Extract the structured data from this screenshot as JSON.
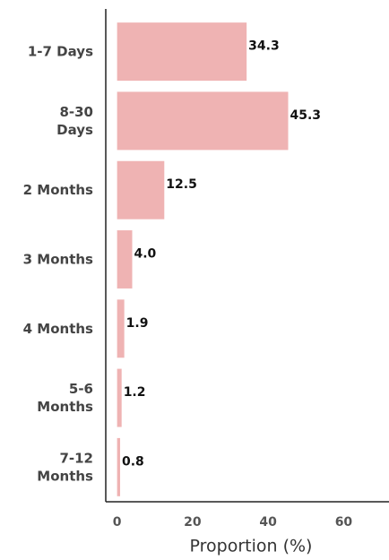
{
  "chart_data": {
    "type": "barh",
    "categories": [
      "1-7 Days",
      "8-30\nDays",
      "2 Months",
      "3 Months",
      "4 Months",
      "5-6\nMonths",
      "7-12\nMonths"
    ],
    "values": [
      34.3,
      45.3,
      12.5,
      4.0,
      1.9,
      1.2,
      0.8
    ],
    "value_labels": [
      "34.3",
      "45.3",
      "12.5",
      "4.0",
      "1.9",
      "1.2",
      "0.8"
    ],
    "color": "#efb3b3",
    "xlabel": "Proportion (%)",
    "xlim": [
      -3,
      72
    ],
    "xticks": [
      0,
      20,
      40,
      60
    ],
    "grid": false
  }
}
